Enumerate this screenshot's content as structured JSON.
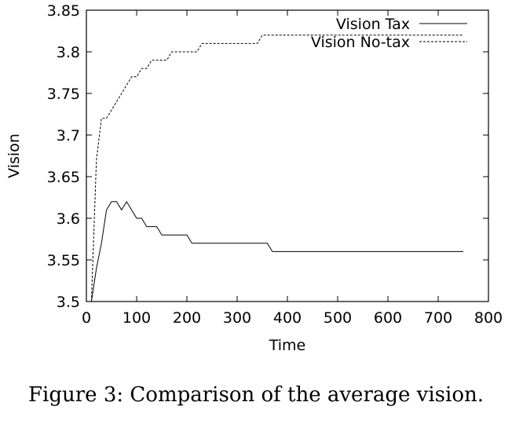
{
  "chart_data": {
    "type": "line",
    "xlabel": "Time",
    "ylabel": "Vision",
    "xlim": [
      0,
      800
    ],
    "ylim": [
      3.5,
      3.85
    ],
    "xticks": [
      0,
      100,
      200,
      300,
      400,
      500,
      600,
      700,
      800
    ],
    "yticks": [
      3.5,
      3.55,
      3.6,
      3.65,
      3.7,
      3.75,
      3.8,
      3.85
    ],
    "xtick_labels": [
      "0",
      "100",
      "200",
      "300",
      "400",
      "500",
      "600",
      "700",
      "800"
    ],
    "ytick_labels": [
      "3.5",
      "3.55",
      "3.6",
      "3.65",
      "3.7",
      "3.75",
      "3.8",
      "3.85"
    ],
    "grid": false,
    "legend_position": "top-right",
    "series": [
      {
        "name": "Vision Tax",
        "style": "solid",
        "color": "#000000",
        "x": [
          10,
          20,
          30,
          40,
          50,
          60,
          70,
          80,
          90,
          100,
          110,
          120,
          130,
          140,
          150,
          160,
          170,
          180,
          190,
          200,
          210,
          220,
          230,
          240,
          250,
          260,
          270,
          280,
          290,
          300,
          310,
          320,
          330,
          340,
          350,
          360,
          370,
          380,
          390,
          400,
          500,
          600,
          700,
          750
        ],
        "y": [
          3.5,
          3.54,
          3.57,
          3.61,
          3.62,
          3.62,
          3.61,
          3.62,
          3.61,
          3.6,
          3.6,
          3.59,
          3.59,
          3.59,
          3.58,
          3.58,
          3.58,
          3.58,
          3.58,
          3.58,
          3.57,
          3.57,
          3.57,
          3.57,
          3.57,
          3.57,
          3.57,
          3.57,
          3.57,
          3.57,
          3.57,
          3.57,
          3.57,
          3.57,
          3.57,
          3.57,
          3.56,
          3.56,
          3.56,
          3.56,
          3.56,
          3.56,
          3.56,
          3.56
        ]
      },
      {
        "name": "Vision No-tax",
        "style": "dashed",
        "color": "#000000",
        "x": [
          10,
          20,
          30,
          40,
          50,
          60,
          70,
          80,
          90,
          100,
          110,
          120,
          130,
          140,
          150,
          160,
          170,
          180,
          190,
          200,
          210,
          220,
          230,
          240,
          250,
          260,
          270,
          280,
          290,
          300,
          310,
          320,
          330,
          340,
          350,
          360,
          370,
          380,
          390,
          400,
          500,
          600,
          700,
          750
        ],
        "y": [
          3.5,
          3.67,
          3.72,
          3.72,
          3.73,
          3.74,
          3.75,
          3.76,
          3.77,
          3.77,
          3.78,
          3.78,
          3.79,
          3.79,
          3.79,
          3.79,
          3.8,
          3.8,
          3.8,
          3.8,
          3.8,
          3.8,
          3.81,
          3.81,
          3.81,
          3.81,
          3.81,
          3.81,
          3.81,
          3.81,
          3.81,
          3.81,
          3.81,
          3.81,
          3.82,
          3.82,
          3.82,
          3.82,
          3.82,
          3.82,
          3.82,
          3.82,
          3.82,
          3.82
        ]
      }
    ]
  },
  "caption": "Figure 3:  Comparison of the average vision."
}
